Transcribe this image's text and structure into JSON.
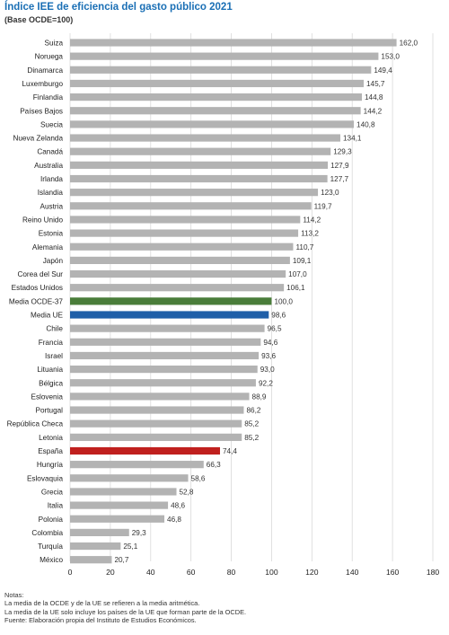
{
  "chart_data": {
    "type": "bar",
    "orientation": "horizontal",
    "title": "Índice IEE de eficiencia del gasto público 2021",
    "subtitle": "(Base OCDE=100)",
    "categories": [
      "Suiza",
      "Noruega",
      "Dinamarca",
      "Luxemburgo",
      "Finlandia",
      "Países Bajos",
      "Suecia",
      "Nueva Zelanda",
      "Canadá",
      "Australia",
      "Irlanda",
      "Islandia",
      "Austria",
      "Reino Unido",
      "Estonia",
      "Alemania",
      "Japón",
      "Corea del Sur",
      "Estados Unidos",
      "Media OCDE-37",
      "Media UE",
      "Chile",
      "Francia",
      "Israel",
      "Lituania",
      "Bélgica",
      "Eslovenia",
      "Portugal",
      "República Checa",
      "Letonia",
      "España",
      "Hungría",
      "Eslovaquia",
      "Grecia",
      "Italia",
      "Polonia",
      "Colombia",
      "Turquía",
      "México"
    ],
    "values": [
      162.0,
      153.0,
      149.4,
      145.7,
      144.8,
      144.2,
      140.8,
      134.1,
      129.3,
      127.9,
      127.7,
      123.0,
      119.7,
      114.2,
      113.2,
      110.7,
      109.1,
      107.0,
      106.1,
      100.0,
      98.6,
      96.5,
      94.6,
      93.6,
      93.0,
      92.2,
      88.9,
      86.2,
      85.2,
      85.2,
      74.4,
      66.3,
      58.6,
      52.8,
      48.6,
      46.8,
      29.3,
      25.1,
      20.7
    ],
    "value_labels": [
      "162,0",
      "153,0",
      "149,4",
      "145,7",
      "144,8",
      "144,2",
      "140,8",
      "134,1",
      "129,3",
      "127,9",
      "127,7",
      "123,0",
      "119,7",
      "114,2",
      "113,2",
      "110,7",
      "109,1",
      "107,0",
      "106,1",
      "100,0",
      "98,6",
      "96,5",
      "94,6",
      "93,6",
      "93,0",
      "92,2",
      "88,9",
      "86,2",
      "85,2",
      "85,2",
      "74,4",
      "66,3",
      "58,6",
      "52,8",
      "48,6",
      "46,8",
      "29,3",
      "25,1",
      "20,7"
    ],
    "xlim": [
      0,
      180
    ],
    "xticks": [
      0,
      20,
      40,
      60,
      80,
      100,
      120,
      140,
      160,
      180
    ],
    "grid": true,
    "default_color": "#b3b3b3",
    "highlight_colors": {
      "Media OCDE-37": "#4a7d3a",
      "Media UE": "#1f5fa8",
      "España": "#c0201e"
    }
  },
  "notes": {
    "heading": "Notas:",
    "lines": [
      "La media de la OCDE y de la UE se refieren a la media aritmética.",
      "La media de la UE solo incluye los países de la UE que forman parte de la OCDE.",
      "Fuente: Elaboración propia del Instituto de Estudios Económicos."
    ]
  }
}
